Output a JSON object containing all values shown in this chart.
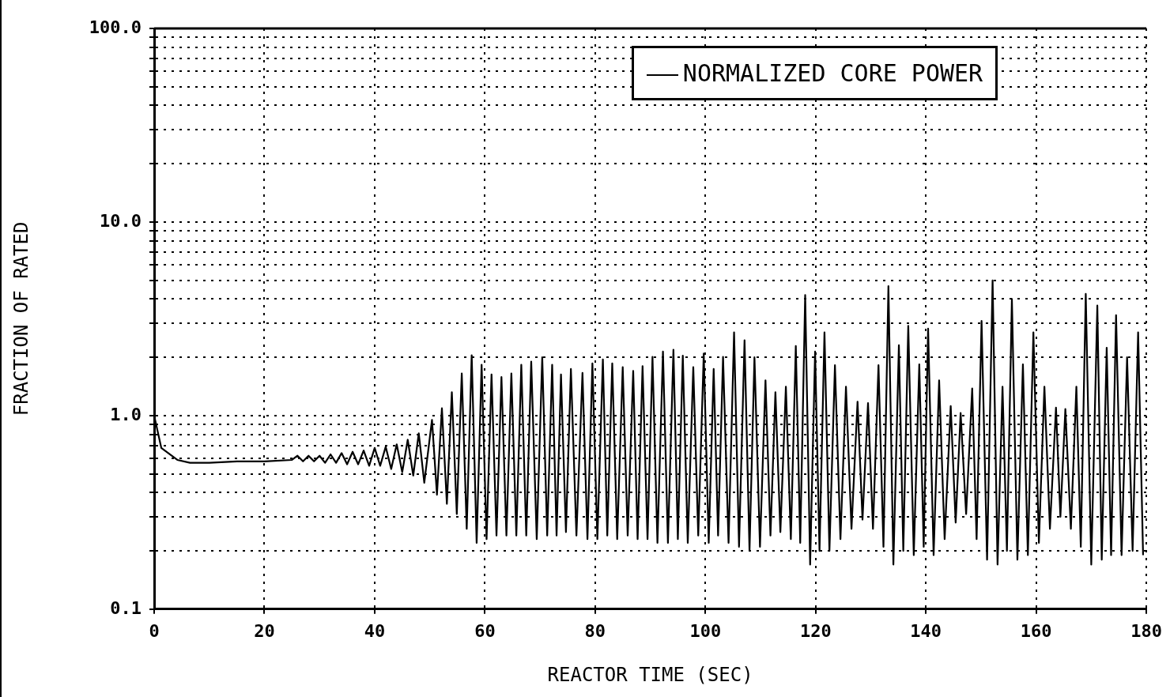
{
  "chart_data": {
    "type": "line",
    "xlabel": "REACTOR TIME (SEC)",
    "ylabel": "FRACTION OF RATED",
    "log": "y",
    "grid": true,
    "legend": "top right",
    "marker": "none",
    "line_style": "solid",
    "xlim": [
      0,
      180
    ],
    "xticks": [
      0,
      20,
      40,
      60,
      80,
      100,
      120,
      140,
      160,
      180
    ],
    "ylim": [
      0.1,
      100
    ],
    "yticks": [
      {
        "value": 0.1,
        "label": "0.1"
      },
      {
        "value": 0.2,
        "label": null
      },
      {
        "value": 0.3,
        "label": null
      },
      {
        "value": 0.4,
        "label": null
      },
      {
        "value": 0.5,
        "label": null
      },
      {
        "value": 0.6,
        "label": null
      },
      {
        "value": 0.7,
        "label": null
      },
      {
        "value": 0.8,
        "label": null
      },
      {
        "value": 0.9,
        "label": null
      },
      {
        "value": 1,
        "label": "1.0"
      },
      {
        "value": 2,
        "label": null
      },
      {
        "value": 3,
        "label": null
      },
      {
        "value": 4,
        "label": null
      },
      {
        "value": 5,
        "label": null
      },
      {
        "value": 6,
        "label": null
      },
      {
        "value": 7,
        "label": null
      },
      {
        "value": 8,
        "label": null
      },
      {
        "value": 9,
        "label": null
      },
      {
        "value": 10,
        "label": "10.0"
      },
      {
        "value": 20,
        "label": null
      },
      {
        "value": 30,
        "label": null
      },
      {
        "value": 40,
        "label": null
      },
      {
        "value": 50,
        "label": null
      },
      {
        "value": 60,
        "label": null
      },
      {
        "value": 70,
        "label": null
      },
      {
        "value": 80,
        "label": null
      },
      {
        "value": 90,
        "label": null
      },
      {
        "value": 100,
        "label": "100.0"
      }
    ],
    "series": [
      {
        "name": "NORMALIZED CORE POWER",
        "color": "#000000",
        "x": [
          0,
          1.3,
          4.2,
          6.5,
          10,
          15,
          20,
          25,
          26,
          27,
          28,
          29,
          30,
          31,
          32,
          33,
          34,
          35,
          36,
          37,
          38,
          39,
          40,
          41,
          42,
          43,
          44,
          45,
          46,
          47,
          48,
          49,
          50.4,
          51.3,
          52.2,
          53.1,
          54.0,
          54.9,
          55.8,
          56.7,
          57.6,
          58.5,
          59.4,
          60.3,
          61.2,
          62.1,
          63.0,
          63.9,
          64.8,
          65.7,
          66.6,
          67.5,
          68.4,
          69.4,
          70.4,
          71.3,
          72.2,
          73.0,
          73.8,
          74.7,
          75.6,
          76.6,
          77.7,
          78.6,
          79.5,
          80.4,
          81.4,
          82.2,
          83.1,
          84.0,
          85.0,
          85.9,
          86.9,
          87.7,
          88.6,
          89.5,
          90.4,
          91.3,
          92.3,
          93.2,
          94.2,
          95.0,
          95.9,
          96.8,
          97.8,
          98.7,
          99.7,
          100.6,
          101.5,
          102.3,
          103.2,
          104.2,
          105.2,
          106.1,
          107.1,
          108.0,
          108.9,
          109.9,
          110.9,
          111.8,
          112.7,
          113.6,
          114.6,
          115.5,
          116.4,
          117.2,
          118.1,
          119.0,
          119.9,
          120.7,
          121.6,
          122.5,
          123.5,
          124.5,
          125.5,
          126.5,
          127.6,
          128.5,
          129.5,
          130.4,
          131.4,
          132.3,
          133.2,
          134.1,
          135.1,
          135.9,
          136.8,
          137.8,
          138.8,
          139.6,
          140.4,
          141.4,
          142.4,
          143.4,
          144.5,
          145.4,
          146.3,
          147.3,
          148.4,
          149.2,
          150.1,
          151.1,
          152.1,
          153.0,
          153.9,
          154.7,
          155.6,
          156.6,
          157.6,
          158.5,
          159.5,
          160.5,
          161.5,
          162.5,
          163.6,
          164.4,
          165.3,
          166.3,
          167.3,
          168.1,
          169.0,
          170.0,
          171.1,
          171.9,
          172.8,
          173.6,
          174.5,
          175.5,
          176.5,
          177.5,
          178.5,
          179.4
        ],
        "values": [
          1.0,
          0.68,
          0.59,
          0.57,
          0.57,
          0.58,
          0.58,
          0.59,
          0.62,
          0.58,
          0.62,
          0.58,
          0.62,
          0.57,
          0.63,
          0.57,
          0.64,
          0.56,
          0.65,
          0.56,
          0.66,
          0.55,
          0.68,
          0.55,
          0.69,
          0.53,
          0.71,
          0.51,
          0.75,
          0.49,
          0.81,
          0.45,
          0.95,
          0.39,
          1.09,
          0.35,
          1.32,
          0.31,
          1.65,
          0.26,
          2.05,
          0.22,
          1.83,
          0.23,
          1.63,
          0.24,
          1.58,
          0.24,
          1.65,
          0.24,
          1.83,
          0.24,
          1.9,
          0.23,
          2.0,
          0.24,
          1.83,
          0.24,
          1.63,
          0.25,
          1.74,
          0.24,
          1.66,
          0.23,
          1.86,
          0.23,
          1.95,
          0.24,
          1.86,
          0.23,
          1.78,
          0.24,
          1.7,
          0.23,
          1.8,
          0.23,
          2.01,
          0.22,
          2.14,
          0.22,
          2.19,
          0.23,
          2.04,
          0.22,
          1.78,
          0.24,
          2.09,
          0.22,
          1.74,
          0.24,
          2.01,
          0.22,
          2.69,
          0.21,
          2.45,
          0.2,
          2.0,
          0.21,
          1.52,
          0.24,
          1.32,
          0.25,
          1.41,
          0.23,
          2.29,
          0.22,
          4.19,
          0.17,
          2.14,
          0.2,
          2.69,
          0.2,
          1.82,
          0.23,
          1.41,
          0.26,
          1.18,
          0.29,
          1.16,
          0.26,
          1.82,
          0.21,
          4.66,
          0.17,
          2.31,
          0.2,
          2.91,
          0.19,
          1.84,
          0.21,
          2.81,
          0.19,
          1.52,
          0.23,
          1.12,
          0.28,
          1.03,
          0.31,
          1.38,
          0.23,
          3.08,
          0.18,
          4.99,
          0.17,
          1.41,
          0.2,
          4.0,
          0.18,
          1.84,
          0.19,
          2.69,
          0.22,
          1.41,
          0.26,
          1.1,
          0.3,
          1.08,
          0.26,
          1.41,
          0.21,
          4.25,
          0.17,
          3.7,
          0.18,
          2.24,
          0.19,
          3.3,
          0.19,
          2.0,
          0.2,
          2.69,
          0.19
        ]
      }
    ]
  }
}
